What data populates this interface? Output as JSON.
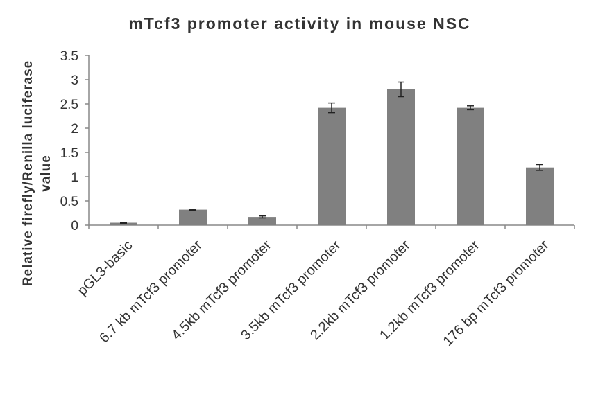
{
  "chart_data": {
    "type": "bar",
    "title": "mTcf3 promoter activity in mouse NSC",
    "ylabel_line1": "Relative firefly/Renilla luciferase",
    "ylabel_line2": "value",
    "xlabel": "",
    "ylim": [
      0,
      3.5
    ],
    "yticks": [
      "0",
      "0.5",
      "1",
      "1.5",
      "2",
      "2.5",
      "3",
      "3.5"
    ],
    "categories": [
      "pGL3-basic",
      "6.7 kb mTcf3 promoter",
      "4.5kb mTcf3 promoter",
      "3.5kb mTcf3 promoter",
      "2.2kb mTcf3 promoter",
      "1.2kb mTcf3 promoter",
      "176 bp mTcf3 promoter"
    ],
    "values": [
      0.05,
      0.32,
      0.17,
      2.42,
      2.8,
      2.42,
      1.19
    ],
    "errors": [
      0.01,
      0.01,
      0.02,
      0.1,
      0.15,
      0.04,
      0.06
    ],
    "bar_color": "#808080",
    "grid": false,
    "legend": "none"
  }
}
